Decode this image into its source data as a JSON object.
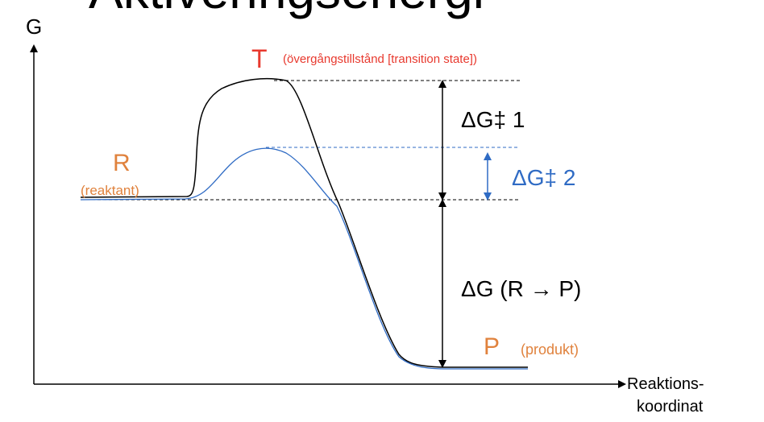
{
  "title": "Aktiveringsenergi",
  "axes": {
    "y_label": "G",
    "x_label_line1": "Reaktions-",
    "x_label_line2": "koordinat"
  },
  "labels": {
    "transition_letter": "T",
    "transition_desc": "(övergångstillstånd [transition state])",
    "reactant_letter": "R",
    "reactant_desc": "(reaktant)",
    "product_letter": "P",
    "product_desc": "(produkt)",
    "dg1": "ΔG‡ 1",
    "dg2": "ΔG‡ 2",
    "dg_rp": "ΔG (R → P)"
  },
  "colors": {
    "transition": "#e8392e",
    "reactant_product": "#e0823d",
    "catalyzed": "#2f6bc4",
    "uncatalyzed": "#000000"
  }
}
